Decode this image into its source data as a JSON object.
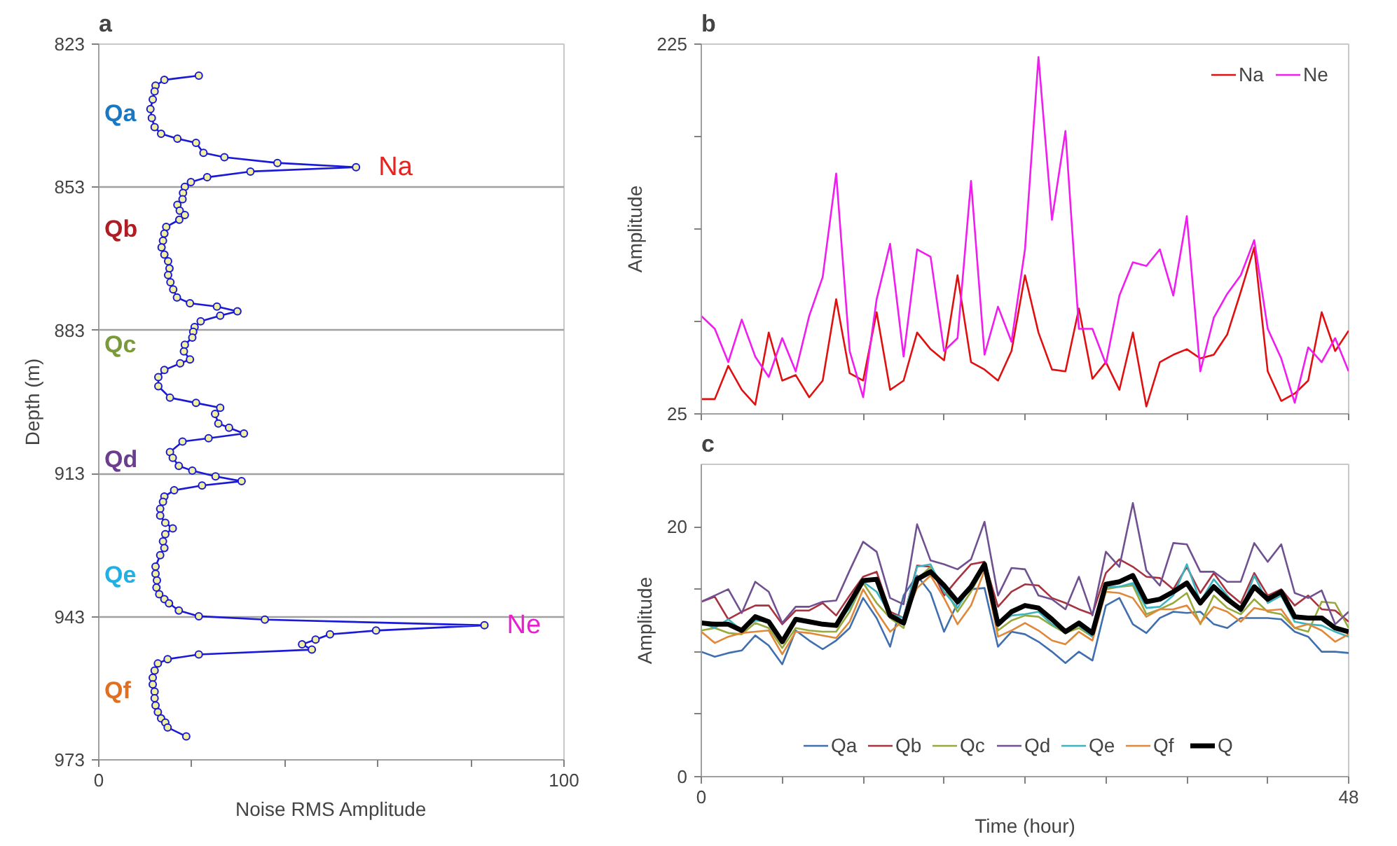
{
  "chart_data": [
    {
      "type": "line",
      "title": "a",
      "xlabel": "Noise RMS Amplitude",
      "ylabel": "Depth (m)",
      "xlim": [
        0,
        100
      ],
      "ylim": [
        973,
        823
      ],
      "xticks": [
        0,
        {
          "value": 20,
          "label": null
        },
        {
          "value": 40,
          "label": null
        },
        {
          "value": 60,
          "label": null
        },
        {
          "value": 80,
          "label": null
        },
        100
      ],
      "yticks": [
        823,
        853,
        883,
        913,
        943,
        973
      ],
      "grid": "y",
      "marker": "circle",
      "legend": false,
      "series": [
        {
          "color": "#1a1ad6",
          "x": [
            21.5,
            14.1,
            12.2,
            12.0,
            11.6,
            11.1,
            11.4,
            12.0,
            13.4,
            16.9,
            20.9,
            22.5,
            27.0,
            38.4,
            55.3,
            32.6,
            23.3,
            19.8,
            18.5,
            18.1,
            18.0,
            16.9,
            17.4,
            18.5,
            17.3,
            14.5,
            14.1,
            13.8,
            13.5,
            14.1,
            14.9,
            15.2,
            14.9,
            15.4,
            16.0,
            16.8,
            19.6,
            25.4,
            29.8,
            26.1,
            21.9,
            20.6,
            20.3,
            20.1,
            18.5,
            18.3,
            19.6,
            17.5,
            14.1,
            12.8,
            12.8,
            15.3,
            20.9,
            26.1,
            25.0,
            25.7,
            28.0,
            31.2,
            23.6,
            18.0,
            15.3,
            15.9,
            17.2,
            20.1,
            25.1,
            30.7,
            22.2,
            16.2,
            14.1,
            13.8,
            13.2,
            13.2,
            14.3,
            15.9,
            14.3,
            13.8,
            14.1,
            13.2,
            12.2,
            12.2,
            12.5,
            12.4,
            13.0,
            14.1,
            15.1,
            17.2,
            21.5,
            35.7,
            82.9,
            59.6,
            49.7,
            46.6,
            43.7,
            45.8,
            21.5,
            14.8,
            12.7,
            12.0,
            11.6,
            11.6,
            12.0,
            12.0,
            12.2,
            12.7,
            13.4,
            14.3,
            14.8,
            18.8
          ],
          "values": [
            829.6,
            830.5,
            831.7,
            832.9,
            834.6,
            836.6,
            838.5,
            840.4,
            841.8,
            842.8,
            843.7,
            845.8,
            846.7,
            847.9,
            848.8,
            849.7,
            850.9,
            851.9,
            852.9,
            854.2,
            855.5,
            856.7,
            857.9,
            858.8,
            859.8,
            861.3,
            862.7,
            864.2,
            865.6,
            867.1,
            868.5,
            870.0,
            871.4,
            872.9,
            874.4,
            876.1,
            877.3,
            878.0,
            879.0,
            879.9,
            881.1,
            882.3,
            883.3,
            884.5,
            886.0,
            887.4,
            889.1,
            889.9,
            891.3,
            892.8,
            894.7,
            897.1,
            898.2,
            899.2,
            900.5,
            902.5,
            903.4,
            904.6,
            905.6,
            906.3,
            908.5,
            909.7,
            911.4,
            912.4,
            913.6,
            914.6,
            915.5,
            916.5,
            917.8,
            918.9,
            920.4,
            921.8,
            923.3,
            924.5,
            925.7,
            927.2,
            928.6,
            930.1,
            932.5,
            934.0,
            935.4,
            936.9,
            938.3,
            939.3,
            940.2,
            941.7,
            942.9,
            943.6,
            944.8,
            945.9,
            946.7,
            947.8,
            948.8,
            949.9,
            950.9,
            951.9,
            952.8,
            954.3,
            955.8,
            957.2,
            958.7,
            960.1,
            961.6,
            963.0,
            964.3,
            965.2,
            966.2,
            968.1
          ]
        }
      ],
      "annotations": [
        "Qa",
        {
          "text": "Na",
          "x": 55.3,
          "y": 848.8
        },
        "Qb",
        "Qc",
        "Qd",
        "Qe",
        {
          "text": "Ne",
          "x": 82.9,
          "y": 944.8
        },
        "Qf"
      ]
    },
    {
      "type": "line",
      "title": "b",
      "ylabel": "Amplitude",
      "xlim": [
        0,
        48
      ],
      "ylim": [
        25,
        225
      ],
      "xticks": [
        0,
        {
          "value": 6,
          "label": null
        },
        {
          "value": 12,
          "label": null
        },
        {
          "value": 18,
          "label": null
        },
        {
          "value": 24,
          "label": null
        },
        {
          "value": 30,
          "label": null
        },
        {
          "value": 36,
          "label": null
        },
        {
          "value": 42,
          "label": null
        },
        48
      ],
      "yticks": [
        25,
        {
          "value": 75,
          "label": null
        },
        {
          "value": 125,
          "label": null
        },
        {
          "value": 175,
          "label": null
        },
        225
      ],
      "tick_labels": "y",
      "legend": "top right",
      "x": [
        0,
        1,
        2,
        3,
        4,
        5,
        6,
        7,
        8,
        9,
        10,
        11,
        12,
        13,
        14,
        15,
        16,
        17,
        18,
        19,
        20,
        21,
        22,
        23,
        24,
        25,
        26,
        27,
        28,
        29,
        30,
        31,
        32,
        33,
        34,
        35,
        36,
        37,
        38,
        39,
        40,
        41,
        42,
        43,
        44,
        45,
        46,
        47,
        48
      ],
      "series": [
        {
          "name": "Na",
          "color": "#e01010",
          "values": [
            33,
            33,
            51,
            38,
            30,
            69,
            43,
            46,
            34,
            43,
            87,
            47,
            43,
            80,
            38,
            43,
            69,
            60,
            54,
            100,
            53,
            49,
            43,
            59,
            100,
            69,
            49,
            48,
            82,
            44,
            53,
            38,
            69,
            29,
            53,
            57,
            60,
            55,
            57,
            68,
            91,
            115,
            48,
            32,
            36,
            43,
            80,
            59,
            70
          ]
        },
        {
          "name": "Ne",
          "color": "#f01cf0",
          "values": [
            78,
            71,
            53,
            76,
            56,
            45,
            66,
            48,
            78,
            99,
            155,
            59,
            34,
            87,
            117,
            56,
            114,
            110,
            59,
            66,
            151,
            57,
            83,
            64,
            114,
            218,
            130,
            178,
            71,
            71,
            52,
            89,
            107,
            105,
            114,
            89,
            132,
            48,
            77,
            90,
            100,
            119,
            71,
            55,
            31,
            61,
            53,
            66,
            48
          ]
        }
      ]
    },
    {
      "type": "line",
      "title": "c",
      "xlabel": "Time (hour)",
      "ylabel": "Amplitude",
      "xlim": [
        0,
        48
      ],
      "ylim": [
        0,
        25
      ],
      "xticks": [
        0,
        {
          "value": 6,
          "label": null
        },
        {
          "value": 12,
          "label": null
        },
        {
          "value": 18,
          "label": null
        },
        {
          "value": 24,
          "label": null
        },
        {
          "value": 30,
          "label": null
        },
        {
          "value": 36,
          "label": null
        },
        {
          "value": 42,
          "label": null
        },
        48
      ],
      "yticks": [
        0,
        {
          "value": 5,
          "label": null
        },
        {
          "value": 10,
          "label": null
        },
        {
          "value": 15,
          "label": null
        },
        20
      ],
      "legend": "bottom",
      "x": [
        0,
        1,
        2,
        3,
        4,
        5,
        6,
        7,
        8,
        9,
        10,
        11,
        12,
        13,
        14,
        15,
        16,
        17,
        18,
        19,
        20,
        21,
        22,
        23,
        24,
        25,
        26,
        27,
        28,
        29,
        30,
        31,
        32,
        33,
        34,
        35,
        36,
        37,
        38,
        39,
        40,
        41,
        42,
        43,
        44,
        45,
        46,
        47,
        48
      ],
      "series": [
        {
          "name": "Qa",
          "color": "#3f6fae",
          "values": [
            10.0,
            9.6,
            9.9,
            10.1,
            11.3,
            10.5,
            9.0,
            11.7,
            10.9,
            10.2,
            10.9,
            11.9,
            14.3,
            12.7,
            10.4,
            14.5,
            16.1,
            14.7,
            11.6,
            13.9,
            15.0,
            15.1,
            10.4,
            11.6,
            11.4,
            10.8,
            10.0,
            9.1,
            10.0,
            9.3,
            13.7,
            14.3,
            12.2,
            11.5,
            12.7,
            13.2,
            13.1,
            13.2,
            12.2,
            11.9,
            12.7,
            12.7,
            12.7,
            12.6,
            11.6,
            11.2,
            10.0,
            10.0,
            9.9
          ]
        },
        {
          "name": "Qb",
          "color": "#a8323e",
          "values": [
            14.0,
            14.4,
            12.6,
            13.2,
            13.7,
            13.7,
            12.2,
            13.3,
            13.3,
            13.9,
            12.9,
            14.5,
            16.0,
            16.4,
            13.2,
            12.7,
            16.9,
            16.8,
            14.5,
            15.8,
            17.0,
            17.2,
            13.6,
            14.8,
            15.4,
            15.3,
            14.3,
            13.9,
            13.4,
            13.0,
            16.3,
            17.4,
            16.8,
            16.0,
            15.9,
            15.0,
            16.8,
            14.7,
            16.3,
            14.8,
            13.9,
            16.3,
            14.5,
            15.0,
            13.7,
            14.5,
            13.4,
            13.3,
            12.4
          ]
        },
        {
          "name": "Qc",
          "color": "#98a93c",
          "values": [
            11.7,
            11.9,
            11.5,
            11.4,
            12.3,
            11.9,
            10.3,
            11.9,
            11.7,
            11.6,
            11.6,
            13.2,
            15.5,
            13.9,
            12.7,
            11.9,
            15.8,
            16.8,
            15.2,
            13.2,
            14.8,
            16.8,
            11.7,
            12.5,
            12.9,
            12.8,
            12.1,
            11.5,
            11.9,
            11.2,
            15.0,
            15.2,
            15.3,
            13.0,
            13.4,
            13.9,
            14.7,
            12.2,
            14.5,
            13.5,
            13.0,
            14.2,
            13.2,
            13.0,
            11.9,
            11.6,
            14.0,
            13.9,
            11.9
          ]
        },
        {
          "name": "Qd",
          "color": "#705090",
          "values": [
            14.0,
            14.5,
            15.0,
            13.1,
            15.6,
            14.8,
            12.3,
            13.6,
            13.6,
            14.0,
            14.1,
            16.5,
            18.8,
            18.0,
            14.3,
            13.8,
            20.2,
            17.3,
            17.0,
            16.6,
            17.4,
            20.4,
            14.5,
            16.7,
            16.6,
            14.5,
            14.2,
            13.4,
            16.0,
            12.9,
            18.0,
            16.8,
            21.9,
            16.5,
            15.3,
            18.7,
            18.6,
            16.4,
            16.4,
            15.6,
            15.6,
            18.7,
            17.2,
            18.6,
            14.7,
            14.3,
            14.9,
            12.2,
            13.2
          ]
        },
        {
          "name": "Qe",
          "color": "#3cb4c0",
          "values": [
            12.3,
            11.9,
            12.6,
            11.7,
            12.5,
            12.4,
            10.9,
            12.7,
            12.5,
            12.3,
            12.2,
            13.5,
            15.6,
            14.8,
            13.0,
            12.7,
            16.8,
            17.0,
            14.8,
            13.5,
            15.3,
            16.8,
            12.2,
            12.9,
            13.0,
            13.2,
            12.2,
            11.6,
            12.1,
            11.2,
            15.2,
            15.2,
            15.5,
            13.5,
            13.6,
            14.5,
            17.0,
            14.0,
            15.8,
            14.5,
            13.2,
            16.1,
            13.9,
            14.5,
            12.4,
            12.2,
            12.1,
            11.6,
            11.2
          ]
        },
        {
          "name": "Qf",
          "color": "#e0883a",
          "values": [
            11.6,
            10.7,
            11.2,
            11.5,
            11.6,
            11.7,
            9.8,
            11.6,
            11.5,
            11.3,
            11.1,
            12.4,
            15.0,
            13.2,
            11.6,
            12.5,
            15.1,
            16.1,
            14.3,
            12.2,
            13.7,
            16.5,
            11.2,
            11.7,
            12.3,
            11.7,
            10.9,
            10.6,
            11.6,
            10.9,
            14.8,
            14.7,
            14.3,
            12.8,
            13.4,
            13.4,
            13.7,
            12.3,
            13.6,
            13.2,
            12.4,
            13.5,
            13.3,
            13.4,
            11.9,
            12.2,
            11.7,
            10.8,
            11.4
          ]
        },
        {
          "name": "Q",
          "color": "#000000",
          "values": [
            12.3,
            12.2,
            12.2,
            11.7,
            12.8,
            12.4,
            10.8,
            12.6,
            12.4,
            12.2,
            12.1,
            13.9,
            15.7,
            15.8,
            12.9,
            12.3,
            15.8,
            16.4,
            15.3,
            14.0,
            15.2,
            17.0,
            12.2,
            13.2,
            13.7,
            13.5,
            12.6,
            11.6,
            12.3,
            11.5,
            15.4,
            15.6,
            16.1,
            14.0,
            14.2,
            14.8,
            15.5,
            13.9,
            15.2,
            14.2,
            13.4,
            15.2,
            14.2,
            14.8,
            12.8,
            12.7,
            12.7,
            11.9,
            11.6
          ]
        }
      ]
    }
  ]
}
